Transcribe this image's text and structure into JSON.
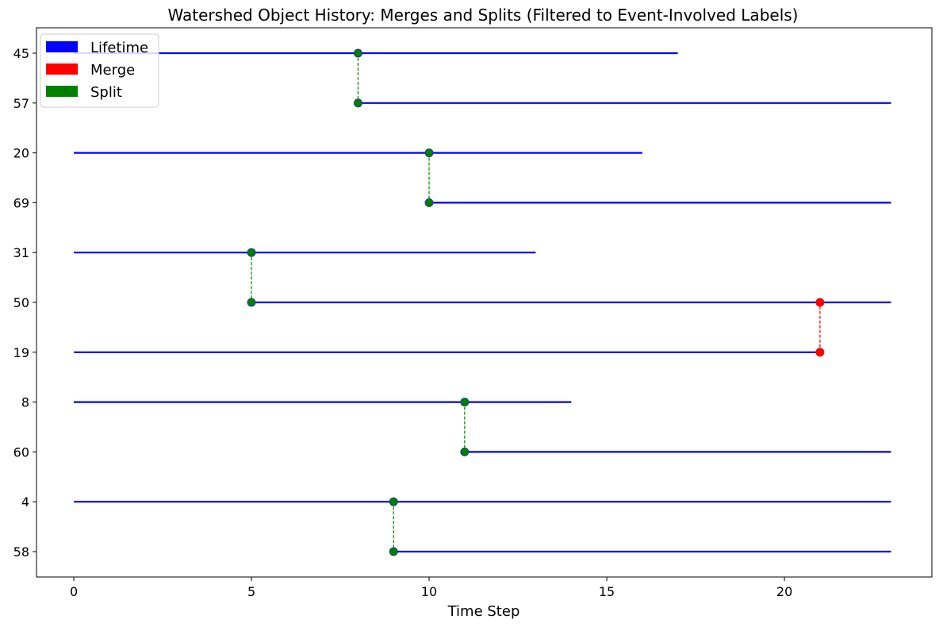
{
  "chart_data": {
    "type": "timeline",
    "title": "Watershed Object History: Merges and Splits (Filtered to Event-Involved Labels)",
    "xlabel": "Time Step",
    "ylabel": "",
    "xlim": [
      -1.05,
      24.15
    ],
    "xticks": [
      0,
      5,
      10,
      15,
      20
    ],
    "grid": false,
    "legend_position": "upper-left",
    "legend": [
      {
        "label": "Lifetime",
        "color": "#0000ff"
      },
      {
        "label": "Merge",
        "color": "#ff0000"
      },
      {
        "label": "Split",
        "color": "#008000"
      }
    ],
    "labels": [
      "45",
      "57",
      "20",
      "69",
      "31",
      "50",
      "19",
      "8",
      "60",
      "4",
      "58"
    ],
    "lifetimes": [
      {
        "label": "45",
        "start": 0,
        "end": 17
      },
      {
        "label": "57",
        "start": 8,
        "end": 23
      },
      {
        "label": "20",
        "start": 0,
        "end": 16
      },
      {
        "label": "69",
        "start": 10,
        "end": 23
      },
      {
        "label": "31",
        "start": 0,
        "end": 13
      },
      {
        "label": "50",
        "start": 5,
        "end": 23
      },
      {
        "label": "19",
        "start": 0,
        "end": 21
      },
      {
        "label": "8",
        "start": 0,
        "end": 14
      },
      {
        "label": "60",
        "start": 11,
        "end": 23
      },
      {
        "label": "4",
        "start": 0,
        "end": 23
      },
      {
        "label": "58",
        "start": 9,
        "end": 23
      }
    ],
    "events": [
      {
        "type": "split",
        "time": 8,
        "from": "45",
        "to": "57"
      },
      {
        "type": "split",
        "time": 10,
        "from": "20",
        "to": "69"
      },
      {
        "type": "split",
        "time": 5,
        "from": "31",
        "to": "50"
      },
      {
        "type": "merge",
        "time": 21,
        "from": "19",
        "to": "50"
      },
      {
        "type": "split",
        "time": 11,
        "from": "8",
        "to": "60"
      },
      {
        "type": "split",
        "time": 9,
        "from": "4",
        "to": "58"
      }
    ],
    "colors": {
      "lifetime": "#0000ff",
      "merge": "#ff0000",
      "split": "#008000",
      "marker_edge": "#1f3f8f"
    }
  }
}
